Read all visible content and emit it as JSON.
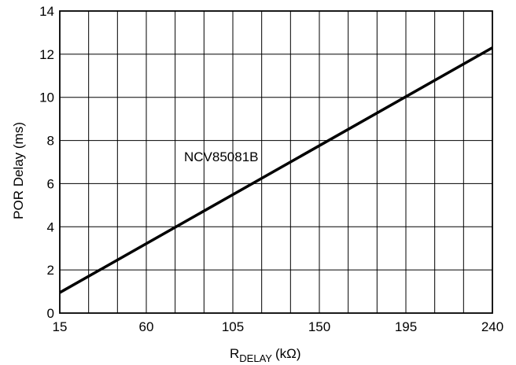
{
  "chart_data": {
    "type": "line",
    "xlabel": "R",
    "xlabel_subscript": "DELAY",
    "xlabel_unit": "(kΩ)",
    "ylabel": "POR Delay (ms)",
    "xlim": [
      15,
      240
    ],
    "ylim": [
      0,
      14
    ],
    "x_ticks": [
      15,
      60,
      105,
      150,
      195,
      240
    ],
    "y_ticks": [
      0,
      2,
      4,
      6,
      8,
      10,
      12,
      14
    ],
    "grid": true,
    "series": [
      {
        "name": "NCV85081B",
        "x": [
          15,
          240
        ],
        "y": [
          0.95,
          12.3
        ]
      }
    ]
  }
}
